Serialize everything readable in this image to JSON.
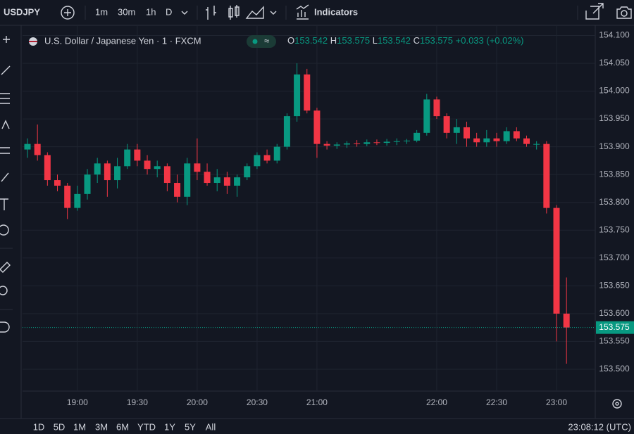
{
  "toolbar": {
    "symbol": "USDJPY",
    "intervals": [
      "1m",
      "30m",
      "1h",
      "D"
    ],
    "indicators": "Indicators"
  },
  "legend": {
    "title": "U.S. Dollar / Japanese Yen · 1 · FXCM",
    "ohlc": [
      {
        "label": "O",
        "value": 153.542
      },
      {
        "label": "H",
        "value": 153.575
      },
      {
        "label": "L",
        "value": 153.542
      },
      {
        "label": "C",
        "value": 153.575
      }
    ],
    "change": "+0.033 (+0.02%)"
  },
  "ranges": [
    "1D",
    "5D",
    "1M",
    "3M",
    "6M",
    "YTD",
    "1Y",
    "5Y",
    "All"
  ],
  "clock": "23:08:12 (UTC)",
  "chart_data": {
    "type": "candlestick",
    "x": [
      "18:35",
      "18:40",
      "18:45",
      "18:50",
      "18:55",
      "19:00",
      "19:05",
      "19:10",
      "19:15",
      "19:20",
      "19:25",
      "19:30",
      "19:35",
      "19:40",
      "19:45",
      "19:50",
      "19:55",
      "20:00",
      "20:05",
      "20:10",
      "20:15",
      "20:20",
      "20:25",
      "20:30",
      "20:35",
      "20:40",
      "20:45",
      "20:50",
      "20:55",
      "21:00",
      "21:05",
      "21:10",
      "21:15",
      "21:20",
      "21:25",
      "21:30",
      "21:35",
      "21:40",
      "21:45",
      "21:50",
      "21:55",
      "22:00",
      "22:05",
      "22:10",
      "22:15",
      "22:20",
      "22:25",
      "22:30",
      "22:35",
      "22:40",
      "22:45",
      "22:50",
      "22:55",
      "23:00",
      "23:05"
    ],
    "open": [
      153.895,
      153.905,
      153.885,
      153.84,
      153.83,
      153.79,
      153.815,
      153.85,
      153.87,
      153.84,
      153.865,
      153.895,
      153.875,
      153.86,
      153.865,
      153.835,
      153.81,
      153.87,
      153.855,
      153.835,
      153.845,
      153.83,
      153.845,
      153.865,
      153.885,
      153.875,
      153.9,
      153.955,
      154.03,
      153.965,
      153.905,
      153.902,
      153.904,
      153.906,
      153.905,
      153.908,
      153.907,
      153.909,
      153.91,
      153.911,
      153.925,
      153.985,
      153.955,
      153.925,
      153.935,
      153.915,
      153.908,
      153.915,
      153.91,
      153.928,
      153.915,
      153.905,
      153.905,
      153.79,
      153.6
    ],
    "high": [
      153.915,
      153.94,
      153.89,
      153.85,
      153.835,
      153.83,
      153.86,
      153.88,
      153.875,
      153.88,
      153.905,
      153.905,
      153.885,
      153.875,
      153.87,
      153.85,
      153.88,
      153.915,
      153.87,
      153.86,
      153.855,
      153.85,
      153.87,
      153.89,
      153.895,
      153.905,
      153.96,
      154.05,
      154.04,
      153.97,
      153.91,
      153.908,
      153.91,
      153.912,
      153.913,
      153.913,
      153.914,
      153.915,
      153.914,
      153.93,
      153.995,
      153.99,
      153.96,
      153.95,
      153.945,
      153.925,
      153.93,
      153.925,
      153.935,
      153.935,
      153.92,
      153.91,
      153.91,
      153.795,
      153.665
    ],
    "low": [
      153.88,
      153.875,
      153.83,
      153.82,
      153.77,
      153.785,
      153.805,
      153.835,
      153.81,
      153.825,
      153.86,
      153.865,
      153.85,
      153.845,
      153.82,
      153.8,
      153.795,
      153.84,
      153.83,
      153.82,
      153.815,
      153.81,
      153.84,
      153.86,
      153.87,
      153.87,
      153.895,
      153.945,
      153.96,
      153.88,
      153.895,
      153.896,
      153.898,
      153.9,
      153.901,
      153.903,
      153.902,
      153.903,
      153.905,
      153.908,
      153.92,
      153.95,
      153.915,
      153.905,
      153.9,
      153.9,
      153.9,
      153.9,
      153.905,
      153.91,
      153.9,
      153.895,
      153.78,
      153.55,
      153.51
    ],
    "close": [
      153.905,
      153.885,
      153.84,
      153.83,
      153.79,
      153.815,
      153.85,
      153.87,
      153.84,
      153.865,
      153.895,
      153.875,
      153.86,
      153.865,
      153.835,
      153.81,
      153.87,
      153.855,
      153.835,
      153.845,
      153.83,
      153.845,
      153.865,
      153.885,
      153.875,
      153.9,
      153.955,
      154.03,
      153.965,
      153.905,
      153.902,
      153.904,
      153.906,
      153.905,
      153.908,
      153.907,
      153.909,
      153.91,
      153.911,
      153.925,
      153.985,
      153.955,
      153.925,
      153.935,
      153.915,
      153.908,
      153.915,
      153.91,
      153.928,
      153.915,
      153.905,
      153.905,
      153.79,
      153.6,
      153.575
    ],
    "up_color": "#089981",
    "down_color": "#f23645",
    "ylim": [
      153.462,
      154.117
    ],
    "yticks": [
      {
        "value": 153.5,
        "label": "153.500"
      },
      {
        "value": 153.55,
        "label": "153.550"
      },
      {
        "value": 153.6,
        "label": "153.600"
      },
      {
        "value": 153.65,
        "label": "153.650"
      },
      {
        "value": 153.7,
        "label": "153.700"
      },
      {
        "value": 153.75,
        "label": "153.750"
      },
      {
        "value": 153.8,
        "label": "153.800"
      },
      {
        "value": 153.85,
        "label": "153.850"
      },
      {
        "value": 153.9,
        "label": "153.900"
      },
      {
        "value": 153.95,
        "label": "153.950"
      },
      {
        "value": 154,
        "label": "154.000"
      },
      {
        "value": 154.05,
        "label": "154.050"
      },
      {
        "value": 154.1,
        "label": "154.100"
      }
    ],
    "xticks": [
      "19:00",
      "19:30",
      "20:00",
      "20:30",
      "21:00",
      "22:00",
      "22:30",
      "23:00"
    ],
    "last_price": 153.575,
    "grid": true
  }
}
